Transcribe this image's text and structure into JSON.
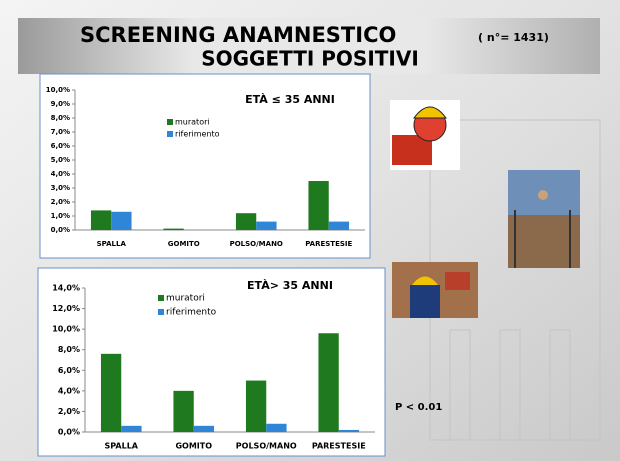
{
  "title": "SCREENING ANAMNESTICO",
  "title_note": "( n°= 1431)",
  "subtitle": "SOGGETTI POSITIVI",
  "note": "P < 0.01",
  "chart_data": [
    {
      "type": "bar",
      "title": "ETÀ ≤ 35 ANNI",
      "categories": [
        "SPALLA",
        "GOMITO",
        "POLSO/MANO",
        "PARESTESIE"
      ],
      "series": [
        {
          "name": "muratori",
          "color": "#1f7a1f",
          "values": [
            1.4,
            0.1,
            1.2,
            3.5
          ]
        },
        {
          "name": "riferimento",
          "color": "#2f86d6",
          "values": [
            1.3,
            0,
            0.6,
            0.6
          ]
        }
      ],
      "ylim": [
        0,
        10
      ],
      "yticks": [
        {
          "value": 0,
          "label": "0,0%"
        },
        {
          "value": 1,
          "label": "1,0%"
        },
        {
          "value": 2,
          "label": "2,0%"
        },
        {
          "value": 3,
          "label": "3,0%"
        },
        {
          "value": 4,
          "label": "4,0%"
        },
        {
          "value": 5,
          "label": "5,0%"
        },
        {
          "value": 6,
          "label": "6,0%"
        },
        {
          "value": 7,
          "label": "7,0%"
        },
        {
          "value": 8,
          "label": "8,0%"
        },
        {
          "value": 9,
          "label": "9,0%"
        },
        {
          "value": 10,
          "label": "10,0%"
        }
      ]
    },
    {
      "type": "bar",
      "title": "ETÀ> 35 ANNI",
      "categories": [
        "SPALLA",
        "GOMITO",
        "POLSO/MANO",
        "PARESTESIE"
      ],
      "series": [
        {
          "name": "muratori",
          "color": "#1f7a1f",
          "values": [
            7.6,
            4.0,
            5.0,
            9.6
          ]
        },
        {
          "name": "riferimento",
          "color": "#2f86d6",
          "values": [
            0.6,
            0.6,
            0.8,
            0.2
          ]
        }
      ],
      "ylim": [
        0,
        14
      ],
      "yticks": [
        {
          "value": 0,
          "label": "0,0%"
        },
        {
          "value": 2,
          "label": "2,0%"
        },
        {
          "value": 4,
          "label": "4,0%"
        },
        {
          "value": 6,
          "label": "6,0%"
        },
        {
          "value": 8,
          "label": "8,0%"
        },
        {
          "value": 10,
          "label": "10,0%"
        },
        {
          "value": 12,
          "label": "12,0%"
        },
        {
          "value": 14,
          "label": "14,0%"
        }
      ]
    }
  ]
}
